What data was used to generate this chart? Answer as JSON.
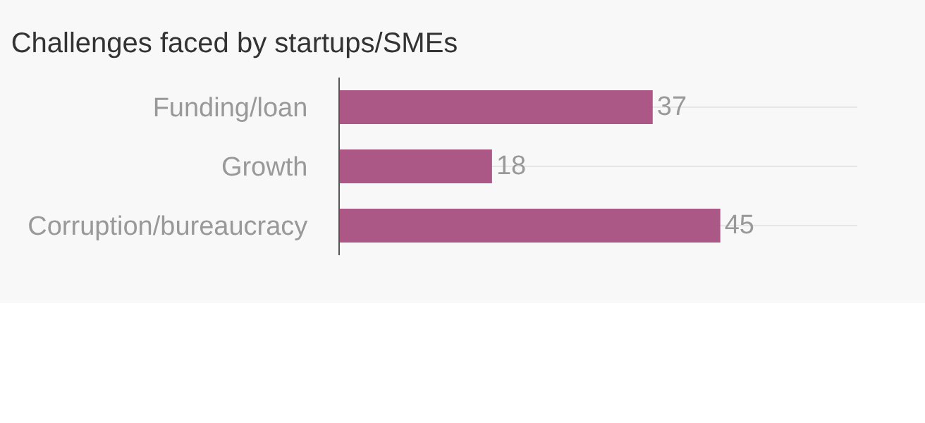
{
  "chart_data": {
    "type": "bar",
    "title": "Challenges faced by startups/SMEs",
    "orientation": "horizontal",
    "categories": [
      "Funding/loan",
      "Growth",
      "Corruption/bureaucracy"
    ],
    "values": [
      37,
      18,
      45
    ],
    "color": "#ac5887",
    "data_labels": true,
    "grid": "y"
  }
}
